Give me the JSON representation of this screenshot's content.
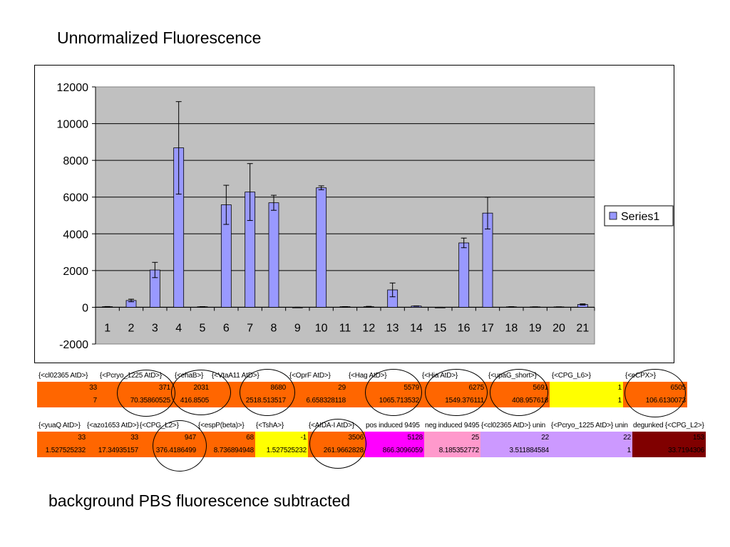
{
  "slide": {
    "title": "Unnormalized Fluorescence",
    "footer": "background PBS fluorescence subtracted"
  },
  "chart_data": {
    "type": "bar",
    "categories": [
      "1",
      "2",
      "3",
      "4",
      "5",
      "6",
      "7",
      "8",
      "9",
      "10",
      "11",
      "12",
      "13",
      "14",
      "15",
      "16",
      "17",
      "18",
      "19",
      "20",
      "21"
    ],
    "series": [
      {
        "name": "Series1",
        "values": [
          33,
          371,
          2031,
          8680,
          29,
          5579,
          6275,
          5691,
          1,
          6505,
          33,
          33,
          947,
          68,
          -1,
          3506,
          5128,
          25,
          22,
          22,
          153
        ],
        "errors": [
          7,
          70.35860525,
          416.8505,
          2518.513517,
          6.658328118,
          1065.713532,
          1549.376111,
          408.957618,
          1,
          106.6130073,
          1.527525232,
          17.34935157,
          376.4186499,
          8.736894948,
          1.527525232,
          261.9662828,
          866.3096059,
          8.185352772,
          3.511884584,
          1,
          33.7194306
        ]
      }
    ],
    "ylim": [
      -2000,
      12000
    ],
    "yticks": [
      -2000,
      0,
      2000,
      4000,
      6000,
      8000,
      10000,
      12000
    ],
    "grid": true,
    "legend": "right",
    "colors": {
      "bar": "#9999ff",
      "plot_bg": "#c0c0c0"
    }
  },
  "table_row1": {
    "cells": [
      {
        "header": "{<cl02365 AtD>}",
        "value": "33",
        "error": "7",
        "color": "#ff6600"
      },
      {
        "header": "{<Pcryo_1225 AtD>}",
        "value": "371",
        "error": "70.35860525",
        "color": "#ff6600"
      },
      {
        "header": "{<ehaB>}",
        "value": "2031",
        "error": "416.8505",
        "color": "#ff6600"
      },
      {
        "header": "{<VtaA11 AtD>}",
        "value": "8680",
        "error": "2518.513517",
        "color": "#ff6600"
      },
      {
        "header": "{<OprF AtD>}",
        "value": "29",
        "error": "6.658328118",
        "color": "#ff6600"
      },
      {
        "header": "{<Hag AtD>}",
        "value": "5579",
        "error": "1065.713532",
        "color": "#ff6600"
      },
      {
        "header": "{<Hia AtD>}",
        "value": "6275",
        "error": "1549.376111",
        "color": "#ff6600"
      },
      {
        "header": "{<upaG_short>}",
        "value": "5691",
        "error": "408.957618",
        "color": "#ff6600"
      },
      {
        "header": "{<CPG_L6>}",
        "value": "1",
        "error": "1",
        "color": "#ffff00"
      },
      {
        "header": "{<eCPX>}",
        "value": "6505",
        "error": "106.6130073",
        "color": "#ff6600"
      }
    ]
  },
  "table_row2": {
    "cells": [
      {
        "header": "{<yuaQ AtD>}",
        "value": "33",
        "error": "1.527525232",
        "color": "#ff6600"
      },
      {
        "header": "{<azo1653 AtD>}",
        "value": "33",
        "error": "17.34935157",
        "color": "#ff6600"
      },
      {
        "header": "{<CPG_L2>}",
        "value": "947",
        "error": "376.4186499",
        "color": "#ff6600"
      },
      {
        "header": "{<espP(beta)>}",
        "value": "68",
        "error": "8.736894948",
        "color": "#ff6600"
      },
      {
        "header": "{<TshA>}",
        "value": "-1",
        "error": "1.527525232",
        "color": "#ffff00"
      },
      {
        "header": "{<AIDA-I AtD>}",
        "value": "3506",
        "error": "261.9662828",
        "color": "#ff6600"
      },
      {
        "header": "pos induced 9495",
        "value": "5128",
        "error": "866.3096059",
        "color": "#ff00ff"
      },
      {
        "header": "neg induced 9495",
        "value": "25",
        "error": "8.185352772",
        "color": "#ff99cc"
      },
      {
        "header": "{<cl02365 AtD>} unin",
        "value": "22",
        "error": "3.511884584",
        "color": "#cc99ff"
      },
      {
        "header": "{<Pcryo_1225 AtD>} unin",
        "value": "22",
        "error": "1",
        "color": "#cc99ff"
      },
      {
        "header": "degunked {<CPG_L2>}",
        "value": "153",
        "error": "33.7194306",
        "color": "#800000"
      }
    ]
  }
}
